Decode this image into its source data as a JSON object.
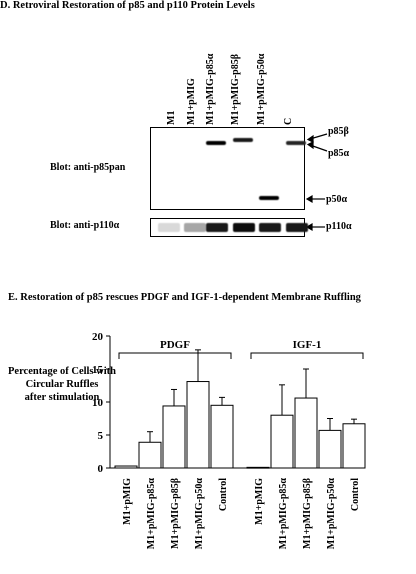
{
  "panel_d": {
    "title": "D. Retroviral Restoration of p85 and p110 Protein Levels",
    "lanes": [
      "M1",
      "M1+pMIG",
      "M1+pMIG-p85α",
      "M1+pMIG-p85β",
      "M1+pMIG-p50α",
      "C"
    ],
    "blot_p85_label": "Blot: anti-p85pan",
    "blot_p110_label": "Blot: anti-p110α",
    "bands": [
      "p85β",
      "p85α",
      "p50α",
      "p110α"
    ],
    "p85_band_strength": [
      0,
      0,
      1,
      0.9,
      0,
      0.85
    ],
    "p50_band_strength": [
      0,
      0,
      0,
      0,
      1,
      0
    ],
    "p110_band_strength": [
      0.15,
      0.35,
      0.9,
      0.95,
      0.9,
      0.9
    ]
  },
  "panel_e": {
    "title": "E. Restoration of p85 rescues PDGF and IGF-1-dependent Membrane Ruffling",
    "chart_data": {
      "type": "bar",
      "ylabel": "Percentage of Cells with Circular Ruffles after stimulation",
      "ylabel_lines": [
        "Percentage of Cells with",
        "Circular Ruffles",
        "after stimulation"
      ],
      "ylim": [
        0,
        20
      ],
      "yticks": [
        0,
        5,
        10,
        15,
        20
      ],
      "groups": [
        "PDGF",
        "IGF-1"
      ],
      "categories": [
        "M1+pMIG",
        "M1+pMIG-p85α",
        "M1+pMIG-p85β",
        "M1+pMIG-p50α",
        "Control"
      ],
      "series": [
        {
          "name": "PDGF",
          "values": [
            0.3,
            3.9,
            9.4,
            13.1,
            9.5
          ],
          "errors": [
            0.1,
            1.6,
            2.5,
            4.8,
            1.2
          ]
        },
        {
          "name": "IGF-1",
          "values": [
            0.1,
            8.0,
            10.6,
            5.7,
            6.7
          ],
          "errors": [
            0.05,
            4.6,
            4.4,
            1.8,
            0.7
          ]
        }
      ]
    }
  }
}
